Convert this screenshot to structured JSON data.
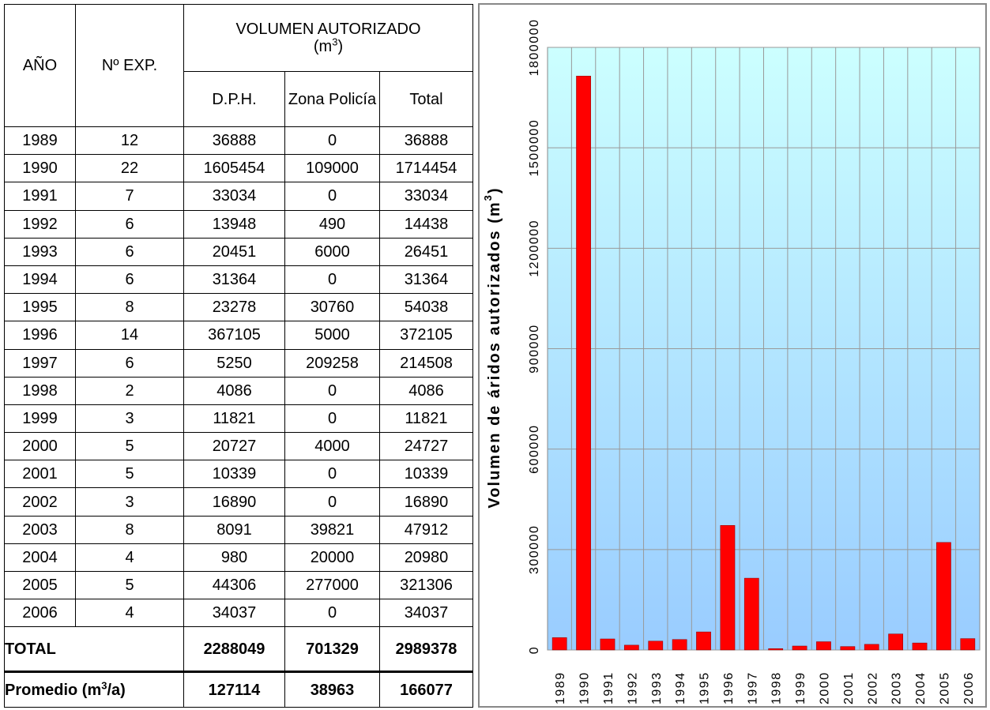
{
  "table": {
    "header": {
      "year": "AÑO",
      "exp": "Nº EXP.",
      "volume": "VOLUMEN AUTORIZADO",
      "volume_unit_open": "(m",
      "volume_unit_sup": "3",
      "volume_unit_close": ")",
      "dph": "D.P.H.",
      "zona": "Zona Policía",
      "total": "Total"
    },
    "rows": [
      [
        1989,
        12,
        36888,
        0,
        36888
      ],
      [
        1990,
        22,
        1605454,
        109000,
        1714454
      ],
      [
        1991,
        7,
        33034,
        0,
        33034
      ],
      [
        1992,
        6,
        13948,
        490,
        14438
      ],
      [
        1993,
        6,
        20451,
        6000,
        26451
      ],
      [
        1994,
        6,
        31364,
        0,
        31364
      ],
      [
        1995,
        8,
        23278,
        30760,
        54038
      ],
      [
        1996,
        14,
        367105,
        5000,
        372105
      ],
      [
        1997,
        6,
        5250,
        209258,
        214508
      ],
      [
        1998,
        2,
        4086,
        0,
        4086
      ],
      [
        1999,
        3,
        11821,
        0,
        11821
      ],
      [
        2000,
        5,
        20727,
        4000,
        24727
      ],
      [
        2001,
        5,
        10339,
        0,
        10339
      ],
      [
        2002,
        3,
        16890,
        0,
        16890
      ],
      [
        2003,
        8,
        8091,
        39821,
        47912
      ],
      [
        2004,
        4,
        980,
        20000,
        20980
      ],
      [
        2005,
        5,
        44306,
        277000,
        321306
      ],
      [
        2006,
        4,
        34037,
        0,
        34037
      ]
    ],
    "total_row": {
      "label": "TOTAL",
      "values": [
        2288049,
        701329,
        2989378
      ]
    },
    "average_row": {
      "label": "Promedio (m",
      "label_sup": "3",
      "label_end": "/a)",
      "values": [
        127114,
        38963,
        166077
      ]
    }
  },
  "chart_data": {
    "type": "bar",
    "y_label": "Volumen de áridos autorizados (m",
    "y_label_sup": "3",
    "y_label_end": ")",
    "categories": [
      "1989",
      "1990",
      "1991",
      "1992",
      "1993",
      "1994",
      "1995",
      "1996",
      "1997",
      "1998",
      "1999",
      "2000",
      "2001",
      "2002",
      "2003",
      "2004",
      "2005",
      "2006"
    ],
    "values": [
      36888,
      1714454,
      33034,
      14438,
      26451,
      31364,
      54038,
      372105,
      214508,
      4086,
      11821,
      24727,
      10339,
      16890,
      47912,
      20980,
      321306,
      34037
    ],
    "color": "#ff0000",
    "ylim": [
      0,
      1800000
    ],
    "yticks": [
      0,
      300000,
      600000,
      900000,
      1200000,
      1500000,
      1800000
    ],
    "grid": true
  }
}
